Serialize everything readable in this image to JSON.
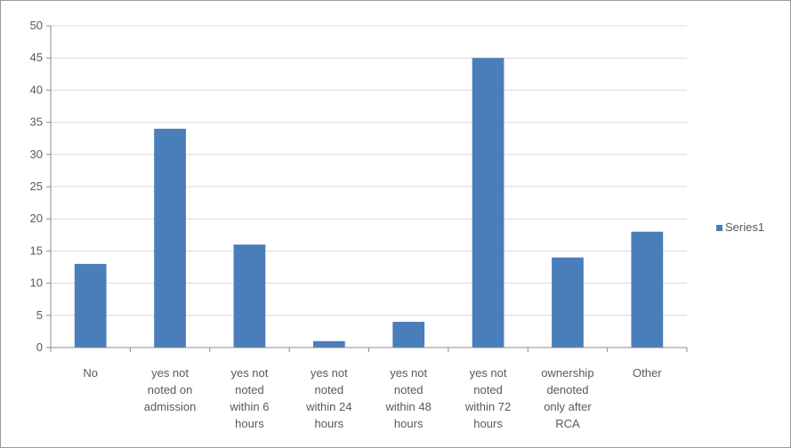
{
  "chart_data": {
    "type": "bar",
    "categories": [
      [
        "No"
      ],
      [
        "yes not",
        "noted on",
        "admission"
      ],
      [
        "yes not",
        "noted",
        "within 6",
        "hours"
      ],
      [
        "yes not",
        "noted",
        "within 24",
        "hours"
      ],
      [
        "yes not",
        "noted",
        "within 48",
        "hours"
      ],
      [
        "yes not",
        "noted",
        "within 72",
        "hours"
      ],
      [
        "ownership",
        "denoted",
        "only after",
        "RCA"
      ],
      [
        "Other"
      ]
    ],
    "series": [
      {
        "name": "Series1",
        "values": [
          13,
          34,
          16,
          1,
          4,
          45,
          14,
          18
        ]
      }
    ],
    "ylim": [
      0,
      50
    ],
    "yticks": [
      0,
      5,
      10,
      15,
      20,
      25,
      30,
      35,
      40,
      45,
      50
    ],
    "grid": true,
    "legend_position": "right",
    "title": "",
    "xlabel": "",
    "ylabel": "",
    "colors": {
      "bar": "#4a7ebb",
      "grid": "#d9d9d9",
      "axis": "#8c8c8c",
      "text": "#595959"
    }
  }
}
